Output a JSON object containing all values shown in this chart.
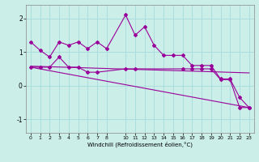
{
  "xlabel": "Windchill (Refroidissement éolien,°C)",
  "bg_color": "#cceee8",
  "line_color": "#990099",
  "grid_color": "#aadddd",
  "ylim": [
    -1.4,
    2.4
  ],
  "xlim": [
    -0.5,
    23.5
  ],
  "yticks": [
    -1,
    0,
    1,
    2
  ],
  "xticks": [
    0,
    1,
    2,
    3,
    4,
    5,
    6,
    7,
    8,
    10,
    11,
    12,
    13,
    14,
    15,
    16,
    17,
    18,
    19,
    20,
    21,
    22,
    23
  ],
  "series1_x": [
    0,
    1,
    2,
    3,
    4,
    5,
    6,
    7,
    8,
    10,
    11,
    12,
    13,
    14,
    15,
    16,
    17,
    18,
    19,
    20,
    21,
    22,
    23
  ],
  "series1_y": [
    1.3,
    1.05,
    0.85,
    1.3,
    1.2,
    1.3,
    1.1,
    1.3,
    1.1,
    2.1,
    1.5,
    1.75,
    1.2,
    0.9,
    0.9,
    0.9,
    0.6,
    0.6,
    0.6,
    0.2,
    0.2,
    -0.35,
    -0.65
  ],
  "series2_x": [
    0,
    1,
    2,
    3,
    4,
    5,
    6,
    7,
    10,
    11,
    16,
    17,
    18,
    19,
    20,
    21,
    22,
    23
  ],
  "series2_y": [
    0.55,
    0.55,
    0.55,
    0.85,
    0.55,
    0.55,
    0.4,
    0.4,
    0.5,
    0.5,
    0.5,
    0.5,
    0.5,
    0.5,
    0.18,
    0.18,
    -0.65,
    -0.65
  ],
  "line1_x": [
    0,
    23
  ],
  "line1_y": [
    0.58,
    0.38
  ],
  "line2_x": [
    0,
    23
  ],
  "line2_y": [
    0.55,
    -0.65
  ]
}
